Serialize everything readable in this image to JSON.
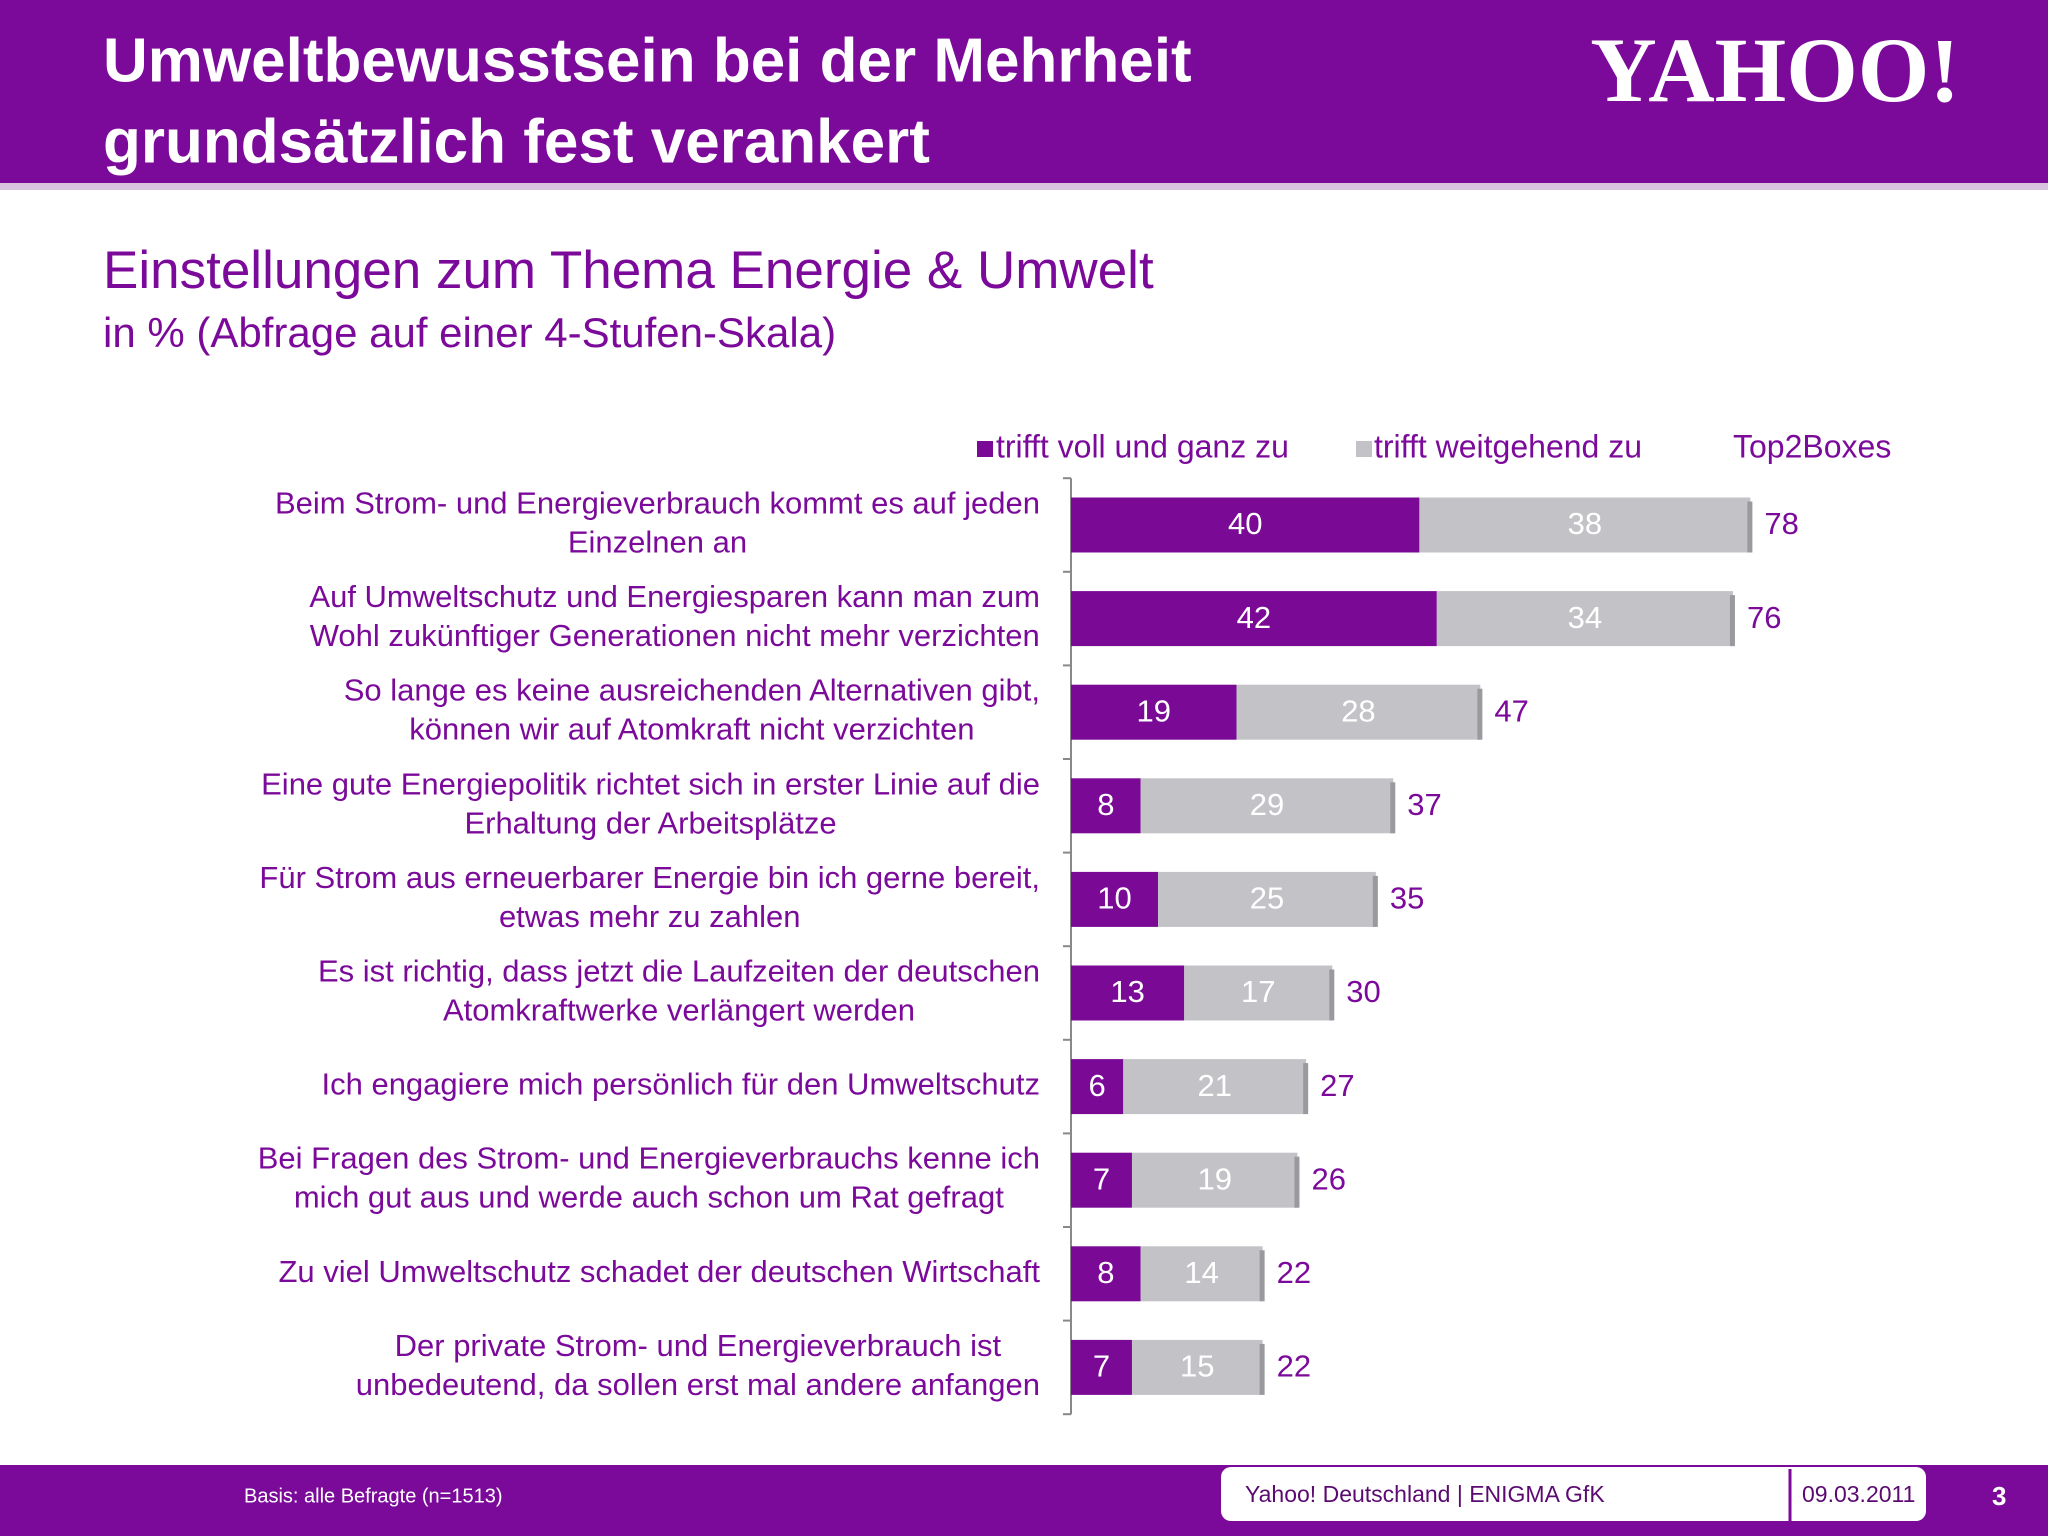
{
  "header": {
    "title_lines": [
      "Umweltbewusstsein bei der Mehrheit",
      "grundsätzlich fest verankert"
    ],
    "logo": "YAHOO!"
  },
  "chart_data": {
    "type": "stacked_hbar",
    "title": "Einstellungen zum Thema Energie & Umwelt",
    "subtitle": "in % (Abfrage auf einer 4-Stufen-Skala)",
    "categories": [
      "Beim Strom- und Energieverbrauch kommt es auf jeden\nEinzelnen an",
      "Auf Umweltschutz und Energiesparen kann man zum\nWohl zukünftiger Generationen nicht mehr verzichten",
      "So lange es keine ausreichenden Alternativen gibt,\nkönnen wir auf Atomkraft nicht verzichten",
      "Eine gute Energiepolitik richtet sich in erster Linie auf die\nErhaltung der Arbeitsplätze",
      "Für Strom aus erneuerbarer Energie bin ich gerne bereit,\netwas mehr zu zahlen",
      "Es ist richtig, dass jetzt die Laufzeiten der deutschen\nAtomkraftwerke verlängert werden",
      "Ich engagiere mich persönlich für den Umweltschutz",
      "Bei Fragen des Strom- und Energieverbrauchs kenne ich\nmich gut aus und werde auch schon um Rat gefragt",
      "Zu viel Umweltschutz schadet der deutschen Wirtschaft",
      "Der private Strom- und Energieverbrauch ist\nunbedeutend, da sollen erst mal andere anfangen"
    ],
    "series": [
      {
        "name": "trifft voll und ganz zu",
        "color": "#7a0a96",
        "values": [
          40,
          42,
          19,
          8,
          10,
          13,
          6,
          7,
          8,
          7
        ]
      },
      {
        "name": "trifft weitgehend zu",
        "color": "#c3c2c6",
        "values": [
          38,
          34,
          28,
          29,
          25,
          17,
          21,
          19,
          14,
          15
        ]
      }
    ],
    "totals_name": "Top2Boxes",
    "totals": [
      78,
      76,
      47,
      37,
      35,
      30,
      27,
      26,
      22,
      22
    ],
    "xlim": [
      0,
      100
    ]
  },
  "footer": {
    "basis": "Basis:  alle Befragte (n=1513)",
    "source": "Yahoo! Deutschland | ENIGMA GfK",
    "date": "09.03.2011",
    "page": "3"
  }
}
